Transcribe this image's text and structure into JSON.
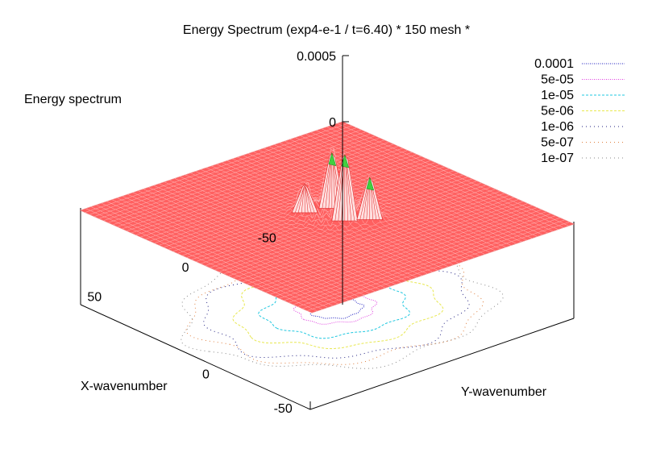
{
  "chart_data": {
    "type": "surface",
    "title": "Energy Spectrum (exp4-e-1 / t=6.40) * 150 mesh *",
    "zlabel": "Energy spectrum",
    "xlabel": "X-wavenumber",
    "ylabel": "Y-wavenumber",
    "zlim": [
      0,
      0.0005
    ],
    "z_ticks": [
      "0.0005",
      "0"
    ],
    "x_ticks": [
      "-50",
      "0",
      "50"
    ],
    "y_ticks": [
      "0",
      "-50"
    ],
    "xlim": [
      -75,
      75
    ],
    "ylim": [
      -75,
      75
    ],
    "surface_color": "#ff6060",
    "peak_color": "#40d040",
    "peaks": [
      {
        "x": -8,
        "y": 6,
        "z": 0.00042
      },
      {
        "x": -3,
        "y": -8,
        "z": 0.0005
      },
      {
        "x": -12,
        "y": -14,
        "z": 0.00032
      },
      {
        "x": 4,
        "y": 10,
        "z": 0.00022
      }
    ],
    "contour_levels": [
      {
        "label": "0.0001",
        "color": "#2020c0",
        "radius": 0.16
      },
      {
        "label": "5e-05",
        "color": "#e040e0",
        "radius": 0.24
      },
      {
        "label": "1e-05",
        "color": "#20c8e0",
        "radius": 0.44
      },
      {
        "label": "5e-06",
        "color": "#e8e850",
        "radius": 0.62
      },
      {
        "label": "1e-06",
        "color": "#202080",
        "radius": 0.8
      },
      {
        "label": "5e-07",
        "color": "#e08040",
        "radius": 0.88
      },
      {
        "label": "1e-07",
        "color": "#888888",
        "radius": 0.95
      }
    ],
    "legend_position": "top-right",
    "grid": false
  }
}
